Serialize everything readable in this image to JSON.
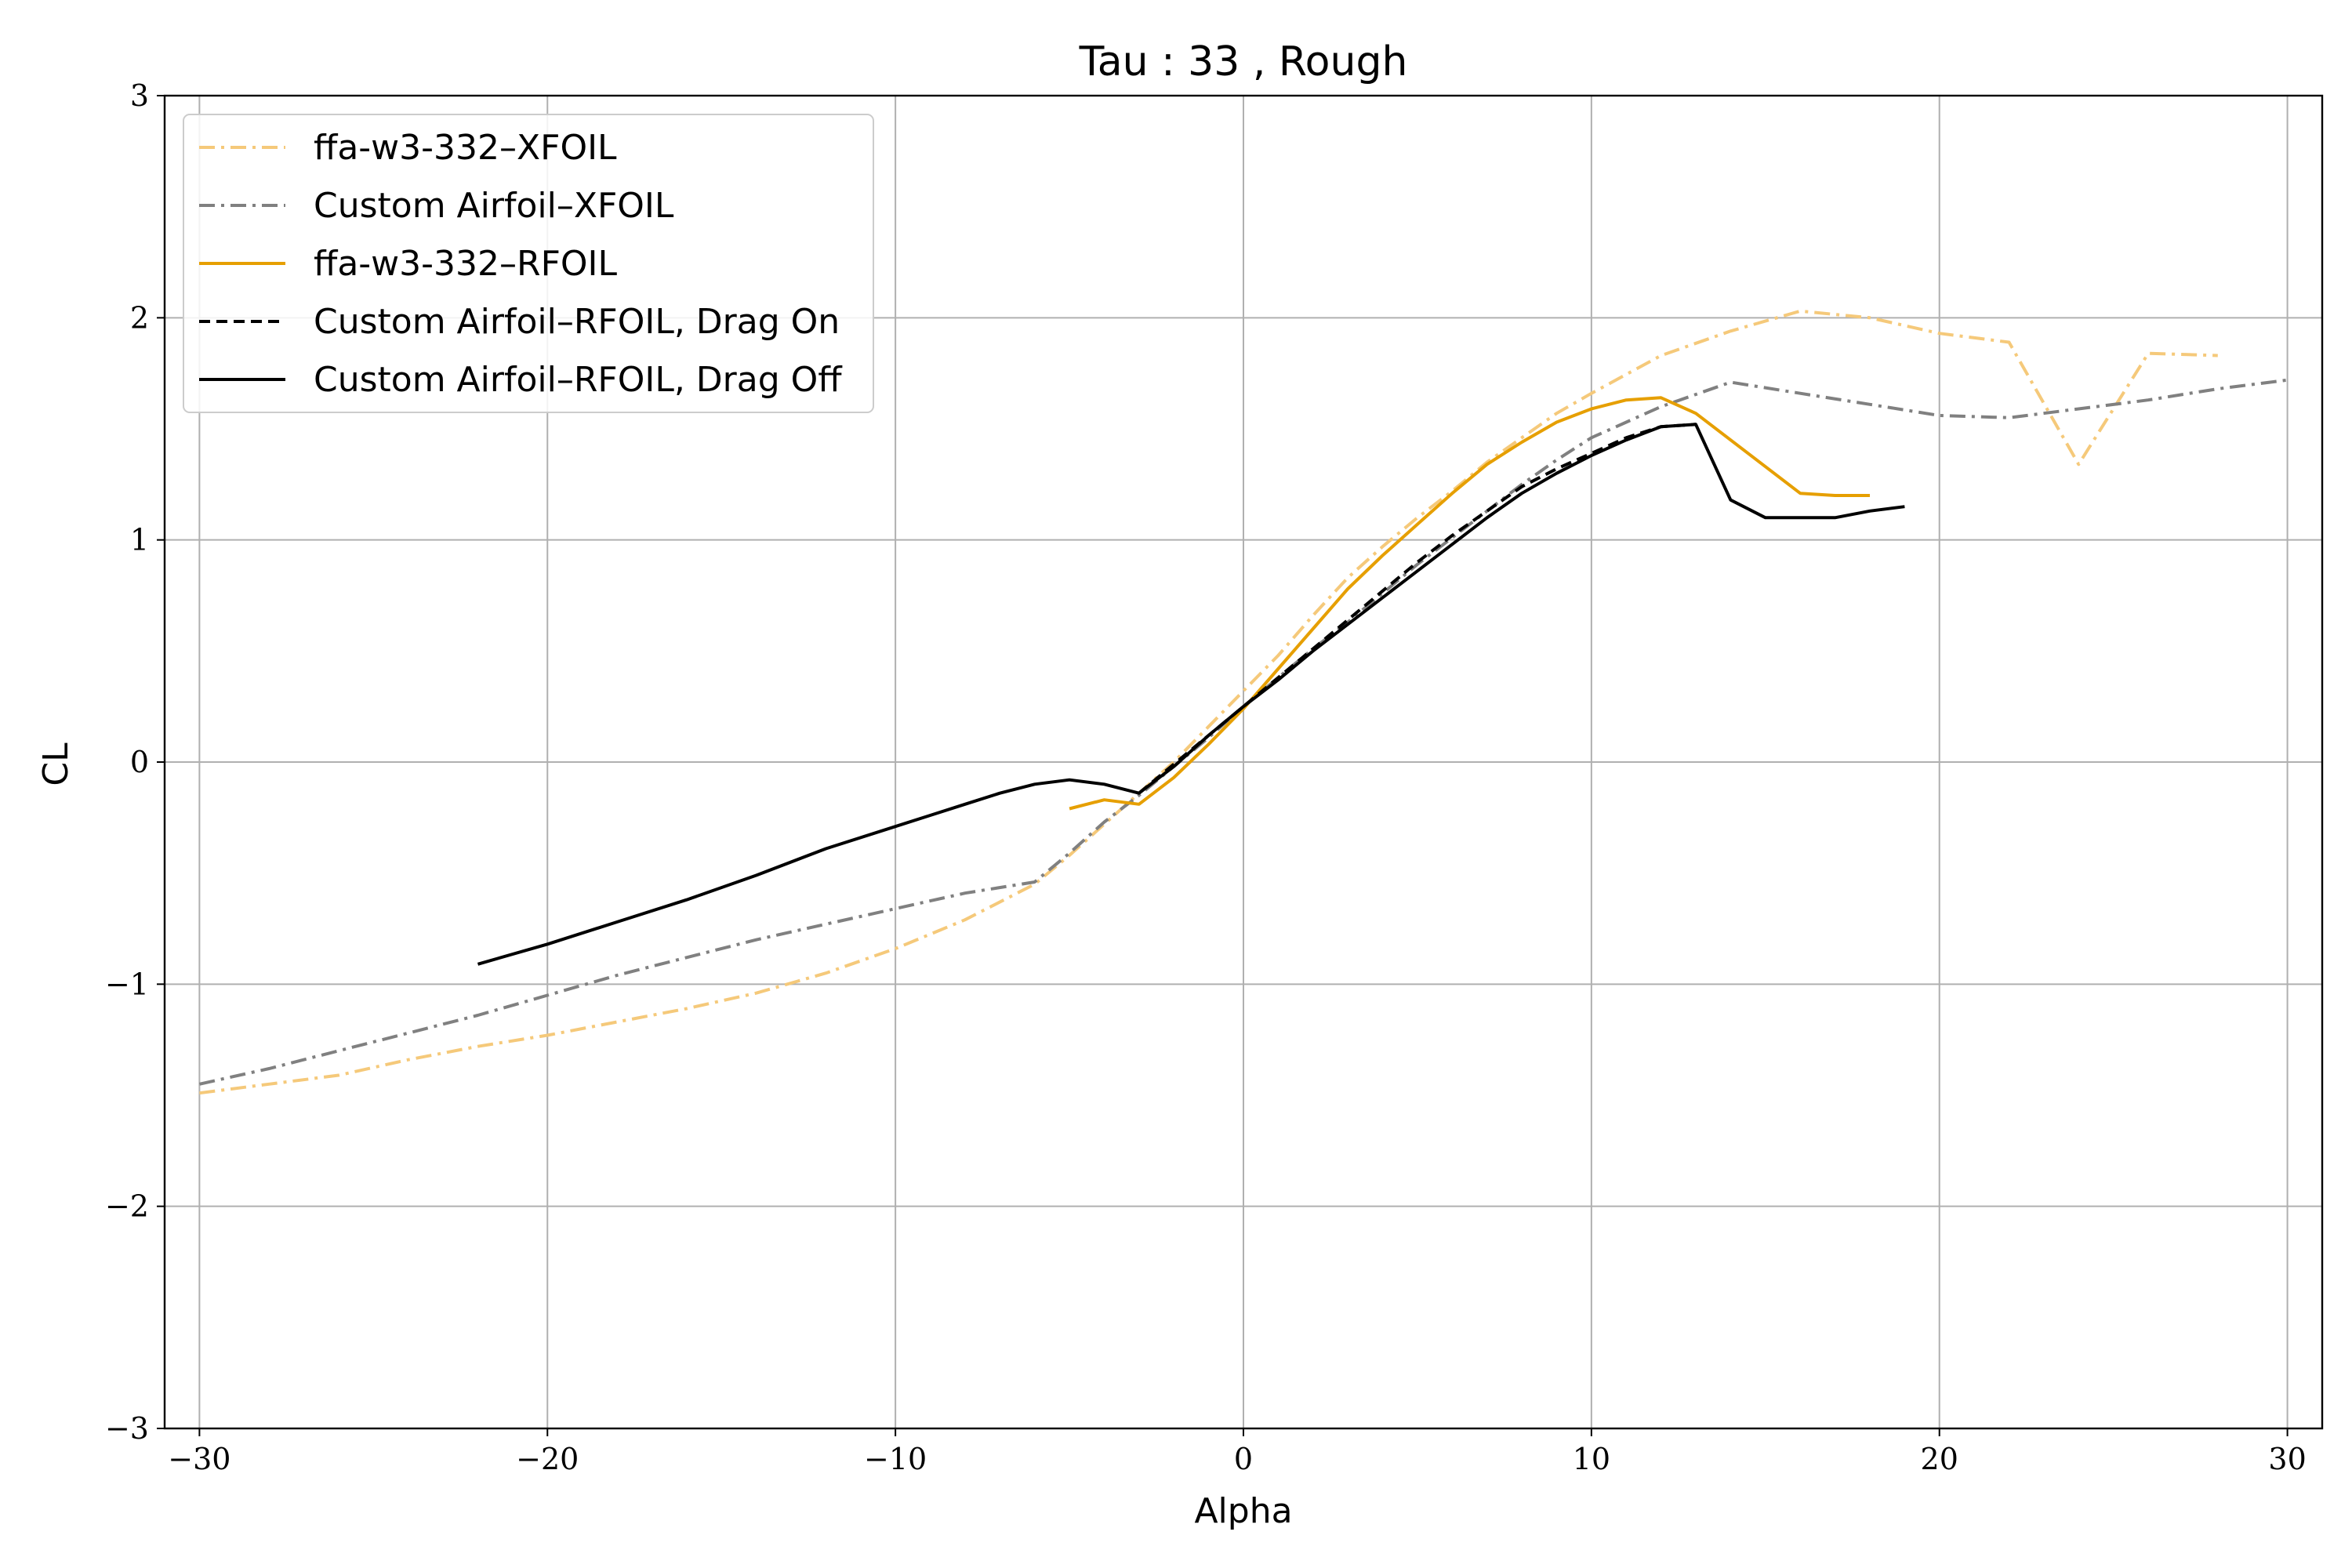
{
  "chart_data": {
    "type": "line",
    "title": "Tau : 33 , Rough",
    "xlabel": "Alpha",
    "ylabel": "CL",
    "xlim": [
      -31,
      31
    ],
    "ylim": [
      -3,
      3
    ],
    "xticks": [
      -30,
      -20,
      -10,
      0,
      10,
      20,
      30
    ],
    "yticks": [
      -3,
      -2,
      -1,
      0,
      1,
      2,
      3
    ],
    "xtick_labels": [
      "−30",
      "−20",
      "−10",
      "0",
      "10",
      "20",
      "30"
    ],
    "ytick_labels": [
      "−3",
      "−2",
      "−1",
      "0",
      "1",
      "2",
      "3"
    ],
    "grid": true,
    "legend_position": "upper-left",
    "series": [
      {
        "name": "ffa-w3-332–XFOIL",
        "color": "#f5c97a",
        "dash": "dashdot",
        "x": [
          -30,
          -28,
          -26,
          -24,
          -22,
          -20,
          -18,
          -16,
          -14,
          -12,
          -10,
          -8,
          -6,
          -5,
          -4,
          -3,
          -2,
          -1,
          0,
          1,
          2,
          3,
          4,
          5,
          6,
          7,
          8,
          9,
          10,
          12,
          14,
          16,
          18,
          20,
          22,
          24,
          26,
          28
        ],
        "y": [
          -1.49,
          -1.45,
          -1.41,
          -1.34,
          -1.28,
          -1.23,
          -1.17,
          -1.11,
          -1.04,
          -0.95,
          -0.84,
          -0.71,
          -0.55,
          -0.42,
          -0.28,
          -0.14,
          0.0,
          0.16,
          0.32,
          0.48,
          0.66,
          0.83,
          0.97,
          1.1,
          1.22,
          1.35,
          1.46,
          1.57,
          1.66,
          1.83,
          1.94,
          2.03,
          2.0,
          1.93,
          1.89,
          1.34,
          1.84,
          1.83
        ]
      },
      {
        "name": "Custom Airfoil–XFOIL",
        "color": "#808080",
        "dash": "dashdot",
        "x": [
          -30,
          -28,
          -26,
          -24,
          -22,
          -20,
          -18,
          -16,
          -14,
          -12,
          -10,
          -8,
          -6,
          -5,
          -4,
          -3,
          -2,
          -1,
          0,
          1,
          2,
          3,
          4,
          5,
          6,
          7,
          8,
          9,
          10,
          12,
          14,
          16,
          18,
          20,
          22,
          24,
          26,
          28,
          30
        ],
        "y": [
          -1.45,
          -1.38,
          -1.3,
          -1.22,
          -1.14,
          -1.05,
          -0.96,
          -0.88,
          -0.8,
          -0.73,
          -0.66,
          -0.59,
          -0.54,
          -0.41,
          -0.27,
          -0.15,
          -0.02,
          0.11,
          0.25,
          0.38,
          0.51,
          0.63,
          0.76,
          0.89,
          1.01,
          1.13,
          1.25,
          1.36,
          1.46,
          1.6,
          1.71,
          1.66,
          1.61,
          1.56,
          1.55,
          1.59,
          1.63,
          1.68,
          1.72
        ]
      },
      {
        "name": "ffa-w3-332–RFOIL",
        "color": "#e69f00",
        "dash": "solid",
        "x": [
          -5,
          -4,
          -3,
          -2,
          -1,
          0,
          1,
          2,
          3,
          4,
          5,
          6,
          7,
          8,
          9,
          10,
          11,
          12,
          13,
          14,
          15,
          16,
          17,
          18
        ],
        "y": [
          -0.21,
          -0.17,
          -0.19,
          -0.07,
          0.08,
          0.24,
          0.42,
          0.6,
          0.78,
          0.93,
          1.07,
          1.21,
          1.34,
          1.44,
          1.53,
          1.59,
          1.63,
          1.64,
          1.57,
          1.45,
          1.33,
          1.21,
          1.2,
          1.2
        ]
      },
      {
        "name": "Custom Airfoil–RFOIL, Drag On",
        "color": "#000000",
        "dash": "dashed",
        "x": [
          -3,
          -2,
          -1,
          0,
          1,
          2,
          3,
          4,
          5,
          6,
          7,
          8,
          9,
          10,
          11,
          12,
          13
        ],
        "y": [
          -0.14,
          -0.01,
          0.12,
          0.25,
          0.38,
          0.51,
          0.64,
          0.77,
          0.9,
          1.02,
          1.13,
          1.24,
          1.32,
          1.39,
          1.46,
          1.51,
          1.52
        ]
      },
      {
        "name": "Custom Airfoil–RFOIL, Drag Off",
        "color": "#000000",
        "dash": "solid",
        "x": [
          -22,
          -20,
          -18,
          -16,
          -14,
          -12,
          -10,
          -9,
          -8,
          -7,
          -6,
          -5,
          -4,
          -3,
          -2,
          -1,
          0,
          1,
          2,
          3,
          4,
          5,
          6,
          7,
          8,
          9,
          10,
          11,
          12,
          13,
          14,
          15,
          16,
          17,
          18,
          19
        ],
        "y": [
          -0.91,
          -0.82,
          -0.72,
          -0.62,
          -0.51,
          -0.39,
          -0.29,
          -0.24,
          -0.19,
          -0.14,
          -0.1,
          -0.08,
          -0.1,
          -0.14,
          -0.02,
          0.12,
          0.25,
          0.37,
          0.5,
          0.62,
          0.74,
          0.86,
          0.98,
          1.1,
          1.21,
          1.3,
          1.38,
          1.45,
          1.51,
          1.52,
          1.18,
          1.1,
          1.1,
          1.1,
          1.13,
          1.15
        ]
      }
    ]
  }
}
